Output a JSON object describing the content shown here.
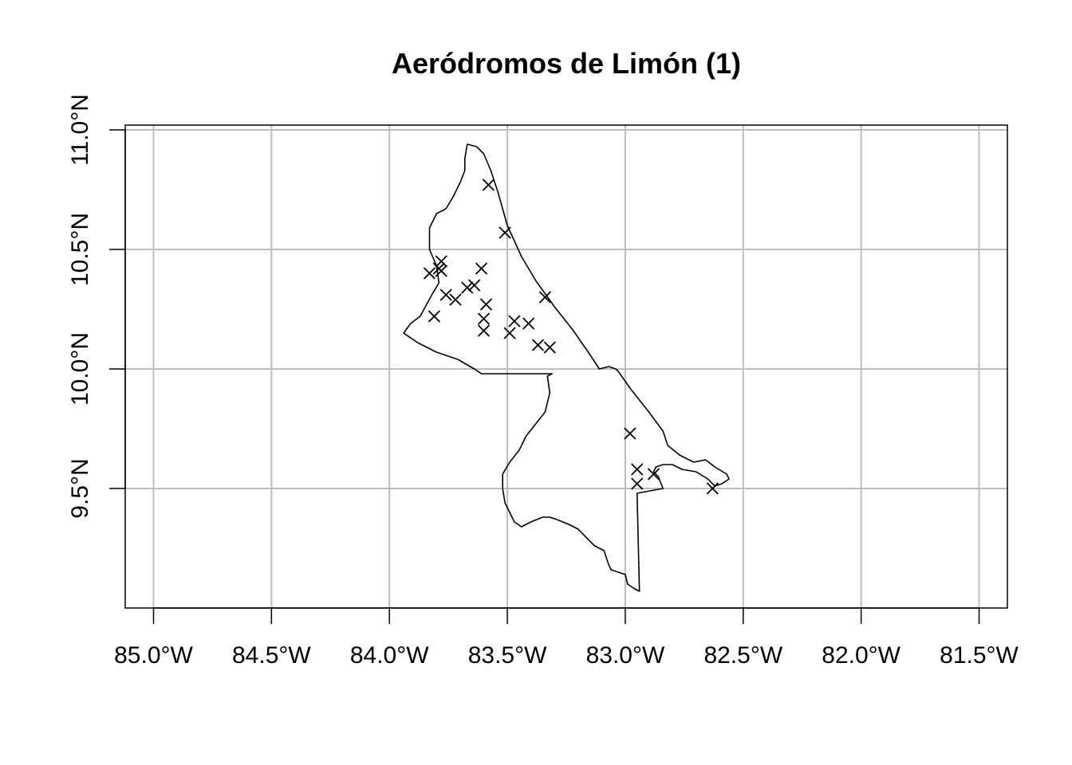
{
  "chart_data": {
    "type": "scatter",
    "title": "Aeródromos de Limón (1)",
    "xlim": [
      -85.12,
      -81.38
    ],
    "ylim": [
      9.0,
      11.02
    ],
    "x_ticks": [
      {
        "value": -85.0,
        "label": "85.0°W"
      },
      {
        "value": -84.5,
        "label": "84.5°W"
      },
      {
        "value": -84.0,
        "label": "84.0°W"
      },
      {
        "value": -83.5,
        "label": "83.5°W"
      },
      {
        "value": -83.0,
        "label": "83.0°W"
      },
      {
        "value": -82.5,
        "label": "82.5°W"
      },
      {
        "value": -82.0,
        "label": "82.0°W"
      },
      {
        "value": -81.5,
        "label": "81.5°W"
      }
    ],
    "y_ticks": [
      {
        "value": 9.5,
        "label": "9.5°N"
      },
      {
        "value": 10.0,
        "label": "10.0°N"
      },
      {
        "value": 10.5,
        "label": "10.5°N"
      },
      {
        "value": 11.0,
        "label": "11.0°N"
      }
    ],
    "grid": true,
    "marker": "x",
    "boundary": [
      [
        -83.67,
        10.94
      ],
      [
        -83.63,
        10.93
      ],
      [
        -83.6,
        10.9
      ],
      [
        -83.57,
        10.83
      ],
      [
        -83.54,
        10.74
      ],
      [
        -83.5,
        10.6
      ],
      [
        -83.44,
        10.47
      ],
      [
        -83.38,
        10.37
      ],
      [
        -83.3,
        10.26
      ],
      [
        -83.22,
        10.16
      ],
      [
        -83.15,
        10.06
      ],
      [
        -83.11,
        10.0
      ],
      [
        -83.07,
        10.01
      ],
      [
        -83.04,
        10.0
      ],
      [
        -83.03,
        9.99
      ],
      [
        -82.98,
        9.92
      ],
      [
        -82.9,
        9.82
      ],
      [
        -82.84,
        9.74
      ],
      [
        -82.82,
        9.68
      ],
      [
        -82.77,
        9.64
      ],
      [
        -82.71,
        9.61
      ],
      [
        -82.66,
        9.62
      ],
      [
        -82.62,
        9.59
      ],
      [
        -82.57,
        9.56
      ],
      [
        -82.56,
        9.54
      ],
      [
        -82.59,
        9.52
      ],
      [
        -82.62,
        9.51
      ],
      [
        -82.65,
        9.54
      ],
      [
        -82.7,
        9.57
      ],
      [
        -82.76,
        9.58
      ],
      [
        -82.8,
        9.6
      ],
      [
        -82.84,
        9.6
      ],
      [
        -82.87,
        9.59
      ],
      [
        -82.88,
        9.57
      ],
      [
        -82.86,
        9.55
      ],
      [
        -82.84,
        9.5
      ],
      [
        -82.95,
        9.48
      ],
      [
        -82.94,
        9.07
      ],
      [
        -82.96,
        9.08
      ],
      [
        -82.99,
        9.1
      ],
      [
        -83.0,
        9.14
      ],
      [
        -83.03,
        9.15
      ],
      [
        -83.06,
        9.16
      ],
      [
        -83.07,
        9.18
      ],
      [
        -83.09,
        9.24
      ],
      [
        -83.13,
        9.26
      ],
      [
        -83.16,
        9.29
      ],
      [
        -83.2,
        9.33
      ],
      [
        -83.24,
        9.35
      ],
      [
        -83.29,
        9.37
      ],
      [
        -83.32,
        9.38
      ],
      [
        -83.35,
        9.38
      ],
      [
        -83.4,
        9.36
      ],
      [
        -83.44,
        9.34
      ],
      [
        -83.47,
        9.36
      ],
      [
        -83.49,
        9.4
      ],
      [
        -83.51,
        9.44
      ],
      [
        -83.52,
        9.5
      ],
      [
        -83.52,
        9.56
      ],
      [
        -83.49,
        9.61
      ],
      [
        -83.45,
        9.66
      ],
      [
        -83.42,
        9.72
      ],
      [
        -83.38,
        9.77
      ],
      [
        -83.34,
        9.82
      ],
      [
        -83.32,
        9.9
      ],
      [
        -83.33,
        9.97
      ],
      [
        -83.31,
        9.98
      ],
      [
        -83.61,
        9.98
      ],
      [
        -83.64,
        10.0
      ],
      [
        -83.71,
        10.04
      ],
      [
        -83.8,
        10.07
      ],
      [
        -83.88,
        10.11
      ],
      [
        -83.94,
        10.15
      ],
      [
        -83.91,
        10.19
      ],
      [
        -83.87,
        10.22
      ],
      [
        -83.82,
        10.31
      ],
      [
        -83.79,
        10.36
      ],
      [
        -83.8,
        10.43
      ],
      [
        -83.83,
        10.5
      ],
      [
        -83.83,
        10.59
      ],
      [
        -83.8,
        10.65
      ],
      [
        -83.76,
        10.67
      ],
      [
        -83.73,
        10.72
      ],
      [
        -83.7,
        10.78
      ],
      [
        -83.68,
        10.83
      ],
      [
        -83.68,
        10.88
      ],
      [
        -83.67,
        10.94
      ]
    ],
    "points": [
      {
        "lon": -83.58,
        "lat": 10.77
      },
      {
        "lon": -83.51,
        "lat": 10.57
      },
      {
        "lon": -83.78,
        "lat": 10.45
      },
      {
        "lon": -83.79,
        "lat": 10.42
      },
      {
        "lon": -83.61,
        "lat": 10.42
      },
      {
        "lon": -83.83,
        "lat": 10.4
      },
      {
        "lon": -83.78,
        "lat": 10.41
      },
      {
        "lon": -83.67,
        "lat": 10.34
      },
      {
        "lon": -83.64,
        "lat": 10.35
      },
      {
        "lon": -83.76,
        "lat": 10.31
      },
      {
        "lon": -83.72,
        "lat": 10.29
      },
      {
        "lon": -83.34,
        "lat": 10.3
      },
      {
        "lon": -83.59,
        "lat": 10.27
      },
      {
        "lon": -83.81,
        "lat": 10.22
      },
      {
        "lon": -83.6,
        "lat": 10.21
      },
      {
        "lon": -83.47,
        "lat": 10.2
      },
      {
        "lon": -83.41,
        "lat": 10.19
      },
      {
        "lon": -83.6,
        "lat": 10.16
      },
      {
        "lon": -83.49,
        "lat": 10.15
      },
      {
        "lon": -83.37,
        "lat": 10.1
      },
      {
        "lon": -83.32,
        "lat": 10.09
      },
      {
        "lon": -82.98,
        "lat": 9.73
      },
      {
        "lon": -82.95,
        "lat": 9.58
      },
      {
        "lon": -82.95,
        "lat": 9.52
      },
      {
        "lon": -82.88,
        "lat": 9.56
      },
      {
        "lon": -82.63,
        "lat": 9.5
      }
    ]
  }
}
